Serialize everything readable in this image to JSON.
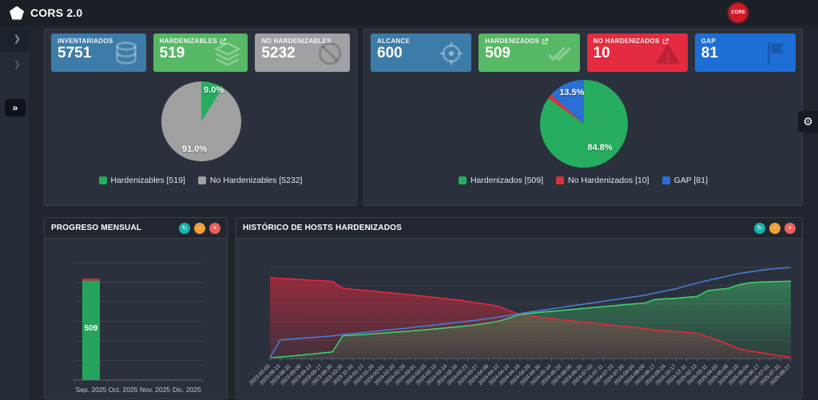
{
  "app": {
    "title": "CORS 2.0",
    "badge": "CORS"
  },
  "sidebar": {
    "items": [
      {
        "name": "menu-expand-1",
        "glyph": "❯"
      },
      {
        "name": "menu-expand-2",
        "glyph": "❯"
      },
      {
        "name": "collapse-toggle",
        "glyph": "»"
      }
    ]
  },
  "settings": {
    "gear_glyph": "⚙"
  },
  "widget_buttons": {
    "refresh": "↻",
    "minimize": "−",
    "close": "×"
  },
  "panels": {
    "inventario": {
      "cards": [
        {
          "label": "INVENTARIADOS",
          "value": "5751",
          "icon": "database-icon",
          "color": "#3d7ca9",
          "external": false
        },
        {
          "label": "HARDENIZABLES",
          "value": "519",
          "icon": "layers-icon",
          "color": "#57b865",
          "external": true
        },
        {
          "label": "NO HARDENIZABLES",
          "value": "5232",
          "icon": "ban-icon",
          "color": "#9fa1a4",
          "external": false
        }
      ],
      "legend": [
        {
          "label": "Hardenizables [519]",
          "color": "#26ad5f"
        },
        {
          "label": "No Hardenizables [5232]",
          "color": "#a0a0a0"
        }
      ]
    },
    "alcance": {
      "cards": [
        {
          "label": "ALCANCE",
          "value": "600",
          "icon": "target-icon",
          "color": "#3d7ca9",
          "external": false
        },
        {
          "label": "HARDENIZADOS",
          "value": "509",
          "icon": "double-check-icon",
          "color": "#57b865",
          "external": true
        },
        {
          "label": "NO HARDENIZADOS",
          "value": "10",
          "icon": "warning-icon",
          "color": "#e42b40",
          "external": true
        },
        {
          "label": "GAP",
          "value": "81",
          "icon": "flag-icon",
          "color": "#1d6fd6",
          "external": false
        }
      ],
      "legend": [
        {
          "label": "Hardenizados [509]",
          "color": "#26ad5f"
        },
        {
          "label": "No Hardenizados [10]",
          "color": "#d63341"
        },
        {
          "label": "GAP [81]",
          "color": "#2a6fd4"
        }
      ]
    },
    "progreso": {
      "title": "PROGRESO MENSUAL"
    },
    "historico": {
      "title": "HISTÓRICO DE HOSTS HARDENIZADOS"
    }
  },
  "chart_data": [
    {
      "id": "pie-inventario",
      "type": "pie",
      "slices": [
        {
          "label": "Hardenizables [519]",
          "value": 519,
          "pct": "9.0%",
          "color": "#26ad5f"
        },
        {
          "label": "No Hardenizables [5232]",
          "value": 5232,
          "pct": "91.0%",
          "color": "#a0a0a0"
        }
      ]
    },
    {
      "id": "pie-alcance",
      "type": "pie",
      "slices": [
        {
          "label": "Hardenizados [509]",
          "value": 509,
          "pct": "84.8%",
          "color": "#26ad5f"
        },
        {
          "label": "No Hardenizados [10]",
          "value": 10,
          "pct": "1.7%",
          "color": "#d63341"
        },
        {
          "label": "GAP [81]",
          "value": 81,
          "pct": "13.5%",
          "color": "#2a6fd4"
        }
      ]
    },
    {
      "id": "bar-progreso",
      "type": "bar",
      "stacked": true,
      "categories": [
        "Sep. 2025",
        "Oct. 2025",
        "Nov. 2025",
        "Dic. 2025"
      ],
      "series": [
        {
          "name": "green",
          "color": "#26a35c",
          "values": [
            509,
            0,
            0,
            0
          ]
        },
        {
          "name": "red",
          "color": "#d8232f",
          "values": [
            10,
            0,
            0,
            0
          ]
        }
      ],
      "bar_label": "509",
      "ylim": [
        0,
        600
      ],
      "grid_step": 100
    },
    {
      "id": "line-historico",
      "type": "area",
      "ylim": [
        0,
        600
      ],
      "grid_step": 120,
      "x": [
        "2023-03-03",
        "2023-08-13",
        "2023-08-31",
        "2023-09-08",
        "2023-09-13",
        "2023-09-17",
        "2023-09-30",
        "2023-10-28",
        "2023-11-10",
        "2024-01-12",
        "2024-01-29",
        "2024-02-01",
        "2024-02-20",
        "2024-02-28",
        "2024-03-01",
        "2024-03-03",
        "2024-03-10",
        "2024-03-14",
        "2024-03-16",
        "2024-03-22",
        "2024-03-27",
        "2024-04-08",
        "2024-04-12",
        "2024-04-16",
        "2024-04-18",
        "2024-04-28",
        "2024-04-30",
        "2024-05-14",
        "2024-05-22",
        "2024-06-05",
        "2024-06-25",
        "2024-07-03",
        "2024-07-11",
        "2024-07-23",
        "2024-07-26",
        "2024-08-04",
        "2024-08-08",
        "2024-08-17",
        "2024-09-24",
        "2024-10-17",
        "2024-12-11",
        "2025-02-13",
        "2025-03-11",
        "2025-04-03",
        "2025-05-08",
        "2025-05-16",
        "2025-06-04",
        "2025-06-17",
        "2025-07-01",
        "2025-07-31",
        "2025-08-27"
      ],
      "series": [
        {
          "name": "red",
          "color": "#e8273c",
          "fill": true,
          "values": [
            533,
            528,
            524,
            520,
            516,
            512,
            508,
            462,
            455,
            449,
            443,
            437,
            430,
            423,
            416,
            409,
            401,
            393,
            385,
            376,
            366,
            355,
            342,
            315,
            290,
            281,
            272,
            264,
            256,
            248,
            240,
            233,
            226,
            219,
            212,
            205,
            198,
            186,
            182,
            178,
            172,
            166,
            143,
            121,
            92,
            64,
            50,
            40,
            28,
            16,
            10
          ]
        },
        {
          "name": "green",
          "color": "#3fd06c",
          "fill": true,
          "values": [
            4,
            10,
            16,
            22,
            29,
            36,
            43,
            150,
            154,
            158,
            163,
            168,
            173,
            178,
            184,
            190,
            196,
            202,
            209,
            216,
            224,
            234,
            247,
            268,
            290,
            298,
            305,
            311,
            317,
            323,
            330,
            336,
            342,
            348,
            354,
            360,
            366,
            389,
            393,
            397,
            403,
            409,
            447,
            455,
            462,
            485,
            499,
            503,
            506,
            508,
            509
          ]
        },
        {
          "name": "blue",
          "color": "#4a7bd0",
          "fill": false,
          "values": [
            8,
            122,
            128,
            133,
            138,
            143,
            149,
            158,
            164,
            171,
            178,
            185,
            192,
            199,
            207,
            214,
            222,
            230,
            238,
            246,
            254,
            263,
            273,
            284,
            296,
            307,
            317,
            327,
            337,
            347,
            357,
            367,
            377,
            387,
            397,
            407,
            417,
            432,
            446,
            460,
            479,
            498,
            514,
            529,
            545,
            560,
            570,
            580,
            589,
            595,
            600
          ]
        }
      ]
    }
  ]
}
